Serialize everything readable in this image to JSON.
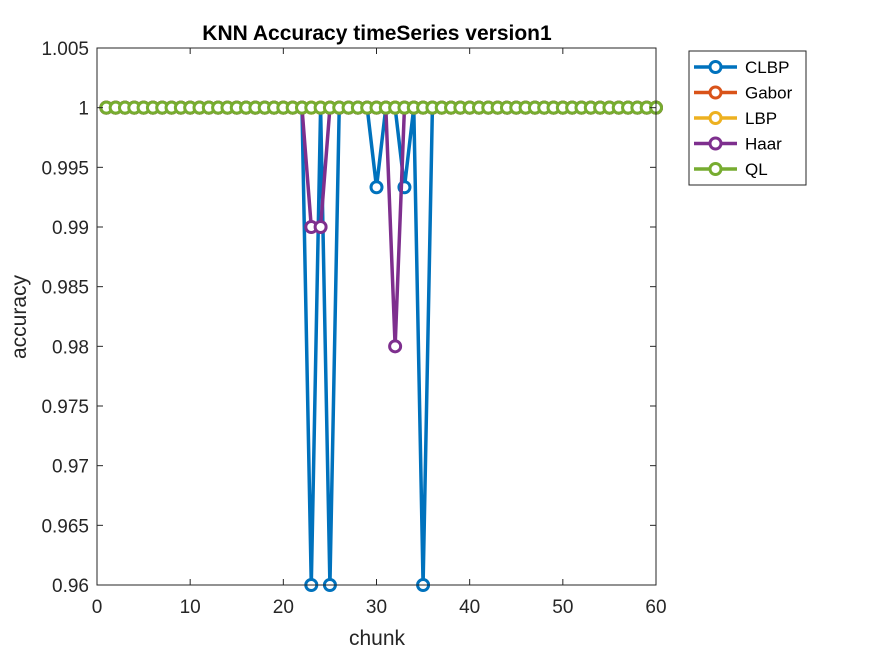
{
  "chart_data": {
    "type": "line",
    "title": "KNN Accuracy timeSeries version1",
    "xlabel": "chunk",
    "ylabel": "accuracy",
    "xlim": [
      0,
      60
    ],
    "ylim": [
      0.96,
      1.005
    ],
    "xticks": [
      0,
      10,
      20,
      30,
      40,
      50,
      60
    ],
    "xtick_labels": [
      "0",
      "10",
      "20",
      "30",
      "40",
      "50",
      "60"
    ],
    "yticks": [
      0.96,
      0.965,
      0.97,
      0.975,
      0.98,
      0.985,
      0.99,
      0.995,
      1,
      1.005
    ],
    "ytick_labels": [
      "0.96",
      "0.965",
      "0.97",
      "0.975",
      "0.98",
      "0.985",
      "0.99",
      "0.995",
      "1",
      "1.005"
    ],
    "grid": false,
    "legend_position": "outside-top-right",
    "x": [
      1,
      2,
      3,
      4,
      5,
      6,
      7,
      8,
      9,
      10,
      11,
      12,
      13,
      14,
      15,
      16,
      17,
      18,
      19,
      20,
      21,
      22,
      23,
      24,
      25,
      26,
      27,
      28,
      29,
      30,
      31,
      32,
      33,
      34,
      35,
      36,
      37,
      38,
      39,
      40,
      41,
      42,
      43,
      44,
      45,
      46,
      47,
      48,
      49,
      50,
      51,
      52,
      53,
      54,
      55,
      56,
      57,
      58,
      59,
      60
    ],
    "series": [
      {
        "name": "CLBP",
        "color": "#0072BD",
        "values": [
          1,
          1,
          1,
          1,
          1,
          1,
          1,
          1,
          1,
          1,
          1,
          1,
          1,
          1,
          1,
          1,
          1,
          1,
          1,
          1,
          1,
          1,
          0.96,
          1,
          0.96,
          1,
          1,
          1,
          1,
          0.99333,
          1,
          1,
          0.99333,
          1,
          0.96,
          1,
          1,
          1,
          1,
          1,
          1,
          1,
          1,
          1,
          1,
          1,
          1,
          1,
          1,
          1,
          1,
          1,
          1,
          1,
          1,
          1,
          1,
          1,
          1,
          1
        ]
      },
      {
        "name": "Gabor",
        "color": "#D95319",
        "values": [
          1,
          1,
          1,
          1,
          1,
          1,
          1,
          1,
          1,
          1,
          1,
          1,
          1,
          1,
          1,
          1,
          1,
          1,
          1,
          1,
          1,
          1,
          1,
          1,
          1,
          1,
          1,
          1,
          1,
          1,
          1,
          1,
          1,
          1,
          1,
          1,
          1,
          1,
          1,
          1,
          1,
          1,
          1,
          1,
          1,
          1,
          1,
          1,
          1,
          1,
          1,
          1,
          1,
          1,
          1,
          1,
          1,
          1,
          1,
          1
        ]
      },
      {
        "name": "LBP",
        "color": "#EDB120",
        "values": [
          1,
          1,
          1,
          1,
          1,
          1,
          1,
          1,
          1,
          1,
          1,
          1,
          1,
          1,
          1,
          1,
          1,
          1,
          1,
          1,
          1,
          1,
          1,
          1,
          1,
          1,
          1,
          1,
          1,
          1,
          1,
          1,
          1,
          1,
          1,
          1,
          1,
          1,
          1,
          1,
          1,
          1,
          1,
          1,
          1,
          1,
          1,
          1,
          1,
          1,
          1,
          1,
          1,
          1,
          1,
          1,
          1,
          1,
          1,
          1
        ]
      },
      {
        "name": "Haar",
        "color": "#7E2F8E",
        "values": [
          1,
          1,
          1,
          1,
          1,
          1,
          1,
          1,
          1,
          1,
          1,
          1,
          1,
          1,
          1,
          1,
          1,
          1,
          1,
          1,
          1,
          1,
          0.99,
          0.99,
          1,
          1,
          1,
          1,
          1,
          1,
          1,
          0.98,
          1,
          1,
          1,
          1,
          1,
          1,
          1,
          1,
          1,
          1,
          1,
          1,
          1,
          1,
          1,
          1,
          1,
          1,
          1,
          1,
          1,
          1,
          1,
          1,
          1,
          1,
          1,
          1
        ]
      },
      {
        "name": "QL",
        "color": "#77AC30",
        "values": [
          1,
          1,
          1,
          1,
          1,
          1,
          1,
          1,
          1,
          1,
          1,
          1,
          1,
          1,
          1,
          1,
          1,
          1,
          1,
          1,
          1,
          1,
          1,
          1,
          1,
          1,
          1,
          1,
          1,
          1,
          1,
          1,
          1,
          1,
          1,
          1,
          1,
          1,
          1,
          1,
          1,
          1,
          1,
          1,
          1,
          1,
          1,
          1,
          1,
          1,
          1,
          1,
          1,
          1,
          1,
          1,
          1,
          1,
          1,
          1
        ]
      }
    ]
  }
}
